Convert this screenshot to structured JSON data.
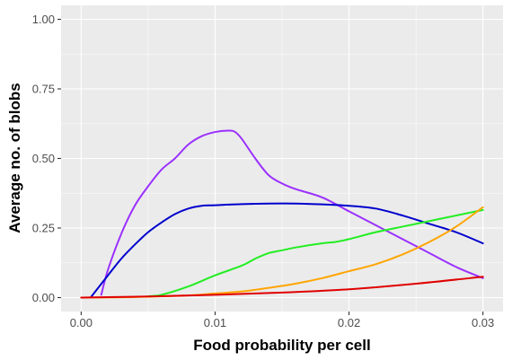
{
  "chart_data": {
    "type": "line",
    "title": "",
    "xlabel": "Food probability per cell",
    "ylabel": "Average no. of blobs",
    "xlim": [
      -0.0015,
      0.0315
    ],
    "ylim": [
      -0.05,
      1.05
    ],
    "x_ticks": [
      0.0,
      0.01,
      0.02,
      0.03
    ],
    "x_tick_labels": [
      "0.00",
      "0.01",
      "0.02",
      "0.03"
    ],
    "y_ticks": [
      0.0,
      0.25,
      0.5,
      0.75,
      1.0
    ],
    "y_tick_labels": [
      "0.00",
      "0.25",
      "0.50",
      "0.75",
      "1.00"
    ],
    "grid": true,
    "legend": "none",
    "series": [
      {
        "color": "#9b30ff",
        "x": [
          0.0015,
          0.002,
          0.003,
          0.004,
          0.005,
          0.006,
          0.007,
          0.008,
          0.009,
          0.01,
          0.011,
          0.0115,
          0.012,
          0.013,
          0.014,
          0.015,
          0.016,
          0.018,
          0.02,
          0.022,
          0.024,
          0.026,
          0.028,
          0.03
        ],
        "y": [
          0.01,
          0.1,
          0.23,
          0.33,
          0.4,
          0.46,
          0.5,
          0.55,
          0.58,
          0.595,
          0.6,
          0.595,
          0.57,
          0.5,
          0.44,
          0.41,
          0.39,
          0.36,
          0.31,
          0.26,
          0.21,
          0.16,
          0.11,
          0.07
        ]
      },
      {
        "color": "#0000cd",
        "x": [
          0.0007,
          0.002,
          0.003,
          0.004,
          0.005,
          0.006,
          0.007,
          0.008,
          0.009,
          0.01,
          0.012,
          0.014,
          0.016,
          0.018,
          0.02,
          0.022,
          0.024,
          0.026,
          0.028,
          0.03
        ],
        "y": [
          0.0,
          0.08,
          0.14,
          0.19,
          0.235,
          0.27,
          0.3,
          0.32,
          0.33,
          0.332,
          0.336,
          0.338,
          0.338,
          0.335,
          0.33,
          0.32,
          0.295,
          0.265,
          0.235,
          0.195
        ]
      },
      {
        "color": "#22ee22",
        "x": [
          0.005,
          0.006,
          0.008,
          0.01,
          0.012,
          0.013,
          0.014,
          0.015,
          0.016,
          0.018,
          0.019,
          0.02,
          0.022,
          0.024,
          0.026,
          0.028,
          0.03
        ],
        "y": [
          0.005,
          0.01,
          0.04,
          0.08,
          0.115,
          0.14,
          0.16,
          0.17,
          0.18,
          0.195,
          0.2,
          0.21,
          0.235,
          0.255,
          0.275,
          0.295,
          0.315
        ]
      },
      {
        "color": "#ffa500",
        "x": [
          0.0,
          0.004,
          0.008,
          0.01,
          0.012,
          0.014,
          0.016,
          0.018,
          0.02,
          0.022,
          0.024,
          0.026,
          0.028,
          0.03
        ],
        "y": [
          0.0,
          0.002,
          0.008,
          0.015,
          0.022,
          0.035,
          0.05,
          0.07,
          0.095,
          0.12,
          0.155,
          0.2,
          0.255,
          0.325
        ]
      },
      {
        "color": "#e00000",
        "x": [
          0.0,
          0.005,
          0.01,
          0.015,
          0.02,
          0.025,
          0.03
        ],
        "y": [
          0.0,
          0.004,
          0.01,
          0.018,
          0.03,
          0.05,
          0.075
        ]
      }
    ]
  }
}
